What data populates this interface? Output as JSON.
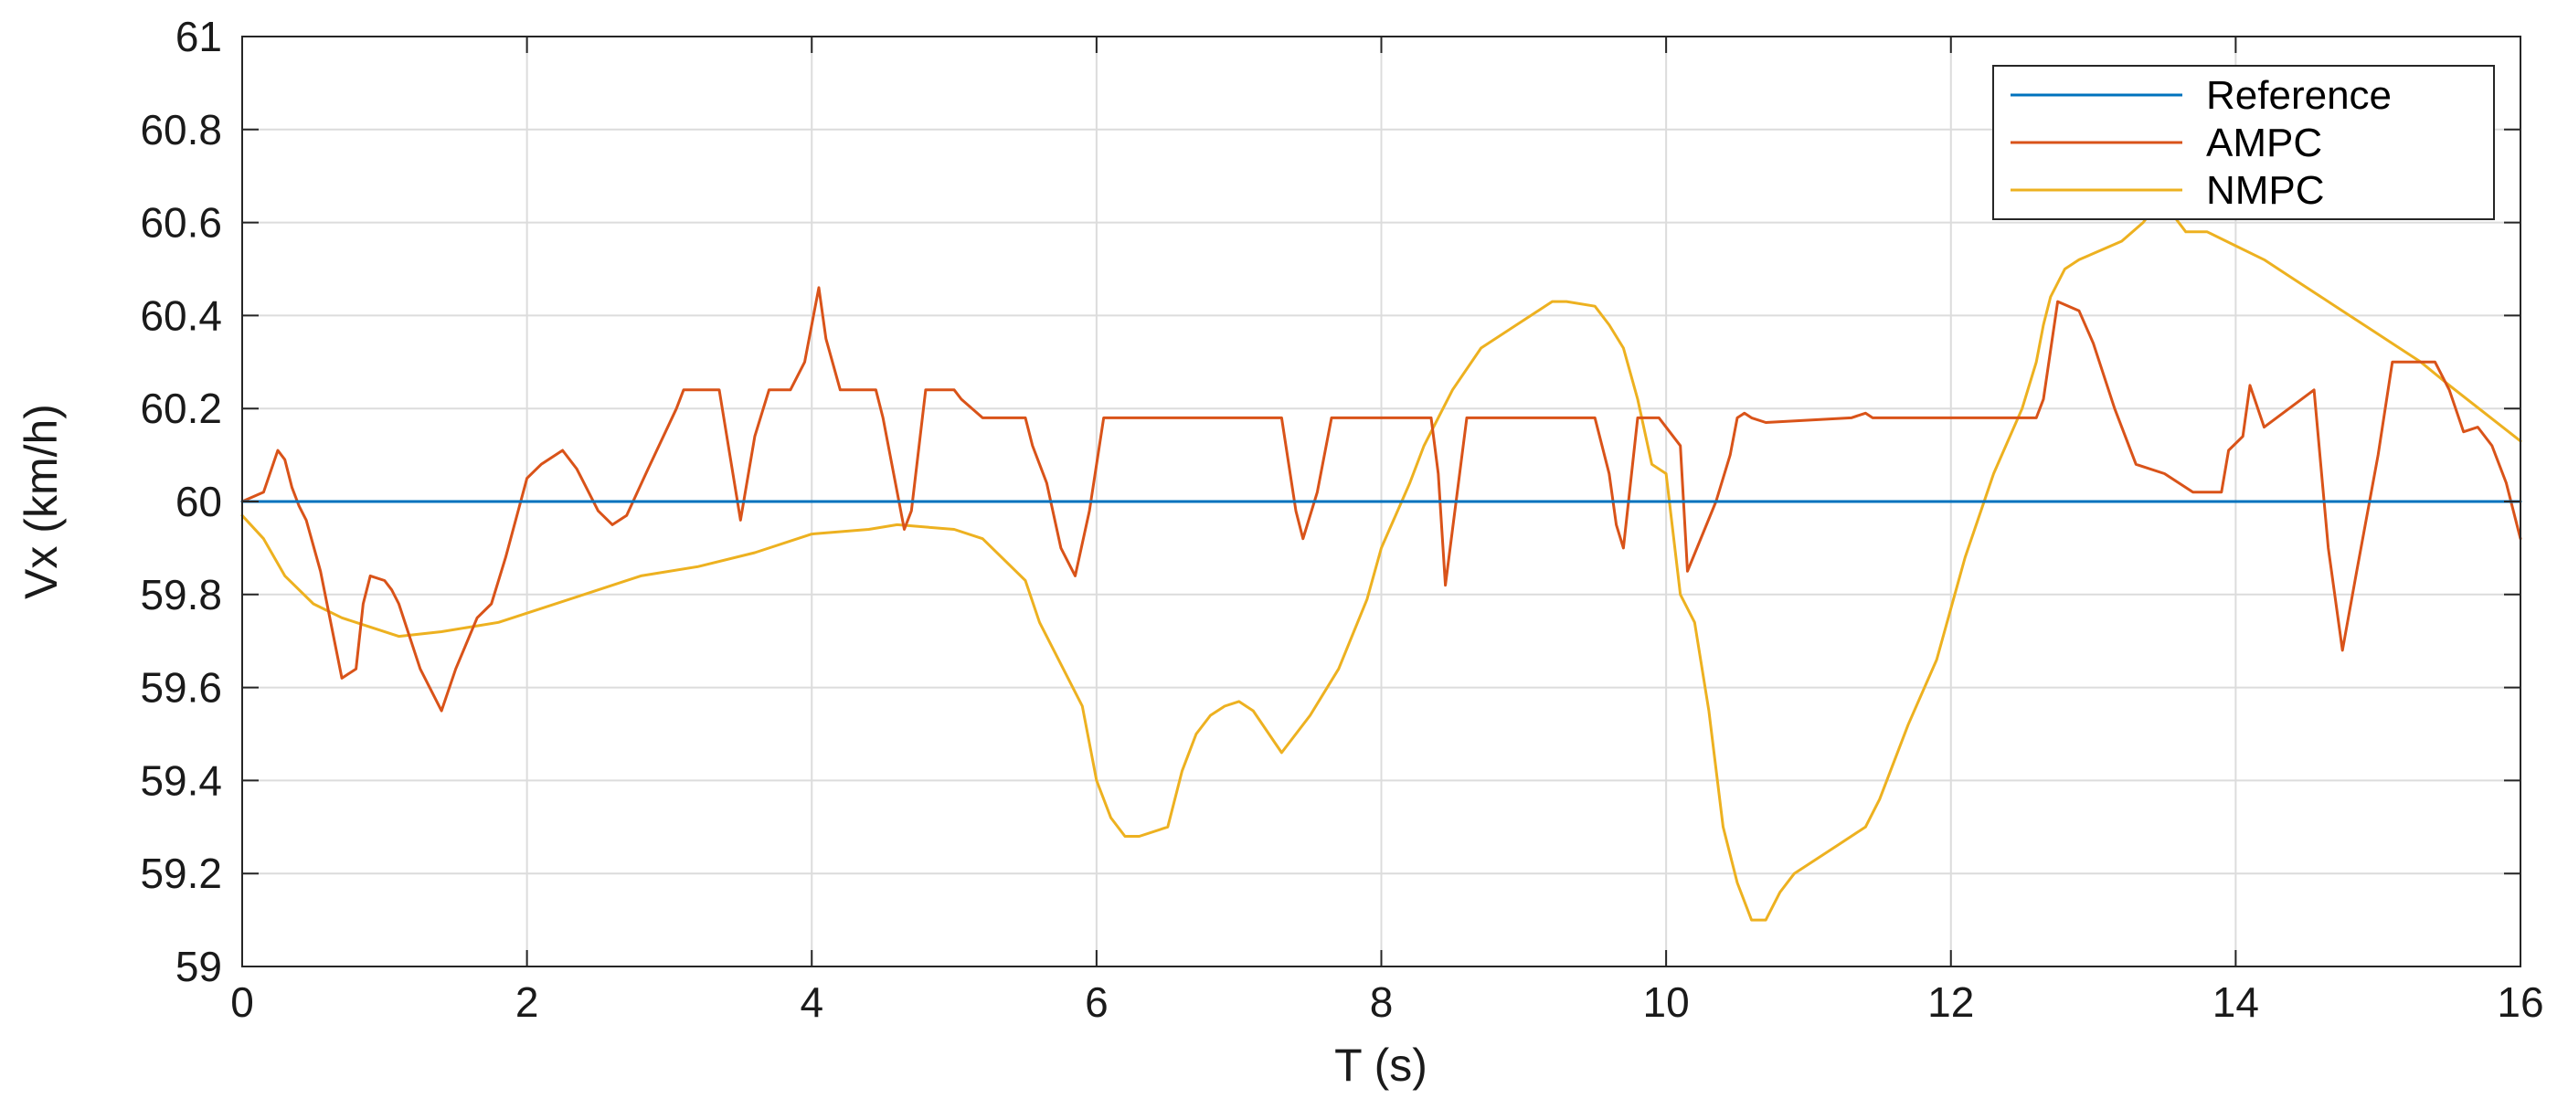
{
  "chart_data": {
    "type": "line",
    "xlabel": "T (s)",
    "ylabel": "Vx (km/h)",
    "xlim": [
      0,
      16
    ],
    "ylim": [
      59,
      61
    ],
    "x_ticks": [
      0,
      2,
      4,
      6,
      8,
      10,
      12,
      14,
      16
    ],
    "x_tick_labels": [
      "0",
      "2",
      "4",
      "6",
      "8",
      "10",
      "12",
      "14",
      "16"
    ],
    "y_ticks": [
      59,
      59.2,
      59.4,
      59.6,
      59.8,
      60,
      60.2,
      60.4,
      60.6,
      60.8,
      61
    ],
    "y_tick_labels": [
      "59",
      "59.2",
      "59.4",
      "59.6",
      "59.8",
      "60",
      "60.2",
      "60.4",
      "60.6",
      "60.8",
      "61"
    ],
    "grid": true,
    "legend_position": "top-right",
    "colors": {
      "Reference": "#0072BD",
      "AMPC": "#D95319",
      "NMPC": "#EDB120"
    },
    "series": [
      {
        "name": "Reference",
        "x": [
          0,
          16
        ],
        "y": [
          60.0,
          60.0
        ]
      },
      {
        "name": "AMPC",
        "x": [
          0,
          0.15,
          0.25,
          0.3,
          0.35,
          0.4,
          0.45,
          0.55,
          0.7,
          0.8,
          0.85,
          0.9,
          1.0,
          1.05,
          1.1,
          1.25,
          1.4,
          1.5,
          1.65,
          1.75,
          1.85,
          2.0,
          2.1,
          2.25,
          2.35,
          2.5,
          2.6,
          2.7,
          2.85,
          3.05,
          3.1,
          3.35,
          3.5,
          3.6,
          3.7,
          3.85,
          3.95,
          4.05,
          4.1,
          4.2,
          4.45,
          4.5,
          4.65,
          4.7,
          4.8,
          4.9,
          5.0,
          5.05,
          5.2,
          5.5,
          5.55,
          5.65,
          5.75,
          5.85,
          5.95,
          6.05,
          6.5,
          7.3,
          7.4,
          7.45,
          7.55,
          7.65,
          7.75,
          8.35,
          8.4,
          8.45,
          8.5,
          8.6,
          8.7,
          9.5,
          9.6,
          9.65,
          9.7,
          9.8,
          9.95,
          10.1,
          10.15,
          10.35,
          10.45,
          10.5,
          10.55,
          10.6,
          10.7,
          11.3,
          11.4,
          11.45,
          11.5,
          12.6,
          12.65,
          12.75,
          12.9,
          13.0,
          13.15,
          13.3,
          13.5,
          13.7,
          13.85,
          13.9,
          13.95,
          14.05,
          14.1,
          14.2,
          14.55,
          14.65,
          14.75,
          14.85,
          15.0,
          15.1,
          15.35,
          15.4,
          15.5,
          15.6,
          15.7,
          15.8,
          15.9,
          16.0
        ],
        "y": [
          60.0,
          60.02,
          60.11,
          60.09,
          60.03,
          59.99,
          59.96,
          59.85,
          59.62,
          59.64,
          59.78,
          59.84,
          59.83,
          59.81,
          59.78,
          59.64,
          59.55,
          59.64,
          59.75,
          59.78,
          59.88,
          60.05,
          60.08,
          60.11,
          60.07,
          59.98,
          59.95,
          59.97,
          60.07,
          60.2,
          60.24,
          60.24,
          59.96,
          60.14,
          60.24,
          60.24,
          60.3,
          60.46,
          60.35,
          60.24,
          60.24,
          60.18,
          59.94,
          59.98,
          60.24,
          60.24,
          60.24,
          60.22,
          60.18,
          60.18,
          60.12,
          60.04,
          59.9,
          59.84,
          59.98,
          60.18,
          60.18,
          60.18,
          59.98,
          59.92,
          60.02,
          60.18,
          60.18,
          60.18,
          60.06,
          59.82,
          59.94,
          60.18,
          60.18,
          60.18,
          60.06,
          59.95,
          59.9,
          60.18,
          60.18,
          60.12,
          59.85,
          60.0,
          60.1,
          60.18,
          60.19,
          60.18,
          60.17,
          60.18,
          60.19,
          60.18,
          60.18,
          60.18,
          60.22,
          60.43,
          60.41,
          60.34,
          60.2,
          60.08,
          60.06,
          60.02,
          60.02,
          60.02,
          60.11,
          60.14,
          60.25,
          60.16,
          60.24,
          59.9,
          59.68,
          59.85,
          60.1,
          60.3,
          60.3,
          60.3,
          60.24,
          60.15,
          60.16,
          60.12,
          60.04,
          59.92
        ]
      },
      {
        "name": "NMPC",
        "x": [
          0,
          0.15,
          0.3,
          0.5,
          0.7,
          0.9,
          1.1,
          1.4,
          1.8,
          2.0,
          2.4,
          2.8,
          3.2,
          3.6,
          4.0,
          4.4,
          4.6,
          5.0,
          5.2,
          5.5,
          5.6,
          5.8,
          5.9,
          6.0,
          6.1,
          6.2,
          6.3,
          6.5,
          6.6,
          6.7,
          6.8,
          6.9,
          7.0,
          7.1,
          7.3,
          7.5,
          7.7,
          7.9,
          8.0,
          8.2,
          8.3,
          8.5,
          8.7,
          9.0,
          9.2,
          9.3,
          9.5,
          9.6,
          9.7,
          9.8,
          9.9,
          10.0,
          10.1,
          10.2,
          10.3,
          10.4,
          10.5,
          10.6,
          10.7,
          10.8,
          10.9,
          11.2,
          11.4,
          11.5,
          11.7,
          11.9,
          12.1,
          12.3,
          12.5,
          12.6,
          12.65,
          12.7,
          12.8,
          12.9,
          13.2,
          13.35,
          13.45,
          13.55,
          13.65,
          13.8,
          14.0,
          14.2,
          14.4,
          14.7,
          15.0,
          15.3,
          15.5,
          16.0
        ],
        "y": [
          59.97,
          59.92,
          59.84,
          59.78,
          59.75,
          59.73,
          59.71,
          59.72,
          59.74,
          59.76,
          59.8,
          59.84,
          59.86,
          59.89,
          59.93,
          59.94,
          59.95,
          59.94,
          59.92,
          59.83,
          59.74,
          59.62,
          59.56,
          59.4,
          59.32,
          59.28,
          59.28,
          59.3,
          59.42,
          59.5,
          59.54,
          59.56,
          59.57,
          59.55,
          59.46,
          59.54,
          59.64,
          59.79,
          59.9,
          60.04,
          60.12,
          60.24,
          60.33,
          60.39,
          60.43,
          60.43,
          60.42,
          60.38,
          60.33,
          60.22,
          60.08,
          60.06,
          59.8,
          59.74,
          59.55,
          59.3,
          59.18,
          59.1,
          59.1,
          59.16,
          59.2,
          59.26,
          59.3,
          59.36,
          59.52,
          59.66,
          59.88,
          60.06,
          60.2,
          60.3,
          60.38,
          60.44,
          60.5,
          60.52,
          60.56,
          60.6,
          60.64,
          60.62,
          60.58,
          60.58,
          60.55,
          60.52,
          60.48,
          60.42,
          60.36,
          60.3,
          60.25,
          60.13
        ]
      }
    ]
  }
}
